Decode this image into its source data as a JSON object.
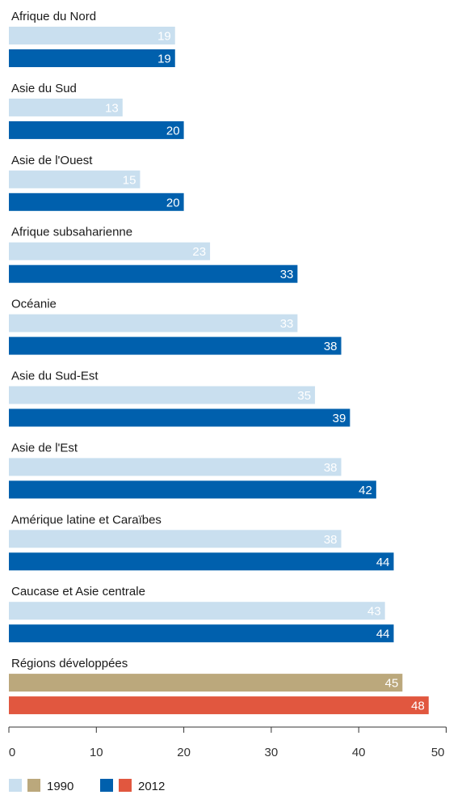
{
  "colors": {
    "series_1990": "#c9dfef",
    "series_2012": "#0060ad",
    "developed_1990": "#bba87c",
    "developed_2012": "#e1573f",
    "axis": "#333333"
  },
  "chart_data": {
    "type": "bar",
    "orientation": "horizontal",
    "categories": [
      "Afrique du Nord",
      "Asie du Sud",
      "Asie de l'Ouest",
      "Afrique subsaharienne",
      "Océanie",
      "Asie du Sud-Est",
      "Asie de l'Est",
      "Amérique latine et Caraïbes",
      "Caucase et Asie centrale",
      "Régions développées"
    ],
    "series": [
      {
        "name": "1990",
        "values": [
          19,
          13,
          15,
          23,
          33,
          35,
          38,
          38,
          43,
          45
        ]
      },
      {
        "name": "2012",
        "values": [
          19,
          20,
          20,
          33,
          38,
          39,
          42,
          44,
          44,
          48
        ]
      }
    ],
    "xlim": [
      0,
      50
    ],
    "xticks": [
      0,
      10,
      20,
      30,
      40,
      50
    ],
    "title": "",
    "xlabel": "",
    "ylabel": "",
    "grid": false,
    "legend_position": "bottom-left",
    "highlighted_category": "Régions développées"
  }
}
